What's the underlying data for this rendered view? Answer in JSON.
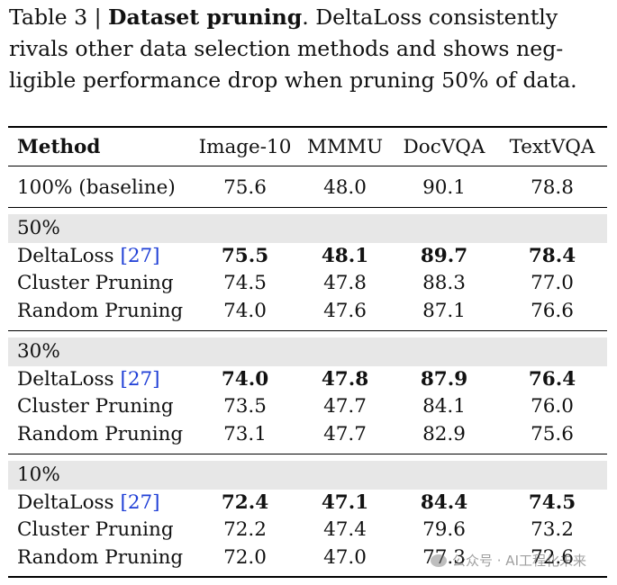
{
  "caption": {
    "label": "Table 3",
    "separator": "|",
    "title": "Dataset pruning",
    "text": "DeltaLoss consistently rivals other data selection methods and shows neg-ligible performance drop when pruning 50% of data."
  },
  "table": {
    "headers": [
      "Method",
      "Image-10",
      "MMMU",
      "DocVQA",
      "TextVQA"
    ],
    "baseline": {
      "method": "100% (baseline)",
      "values": [
        "75.6",
        "48.0",
        "90.1",
        "78.8"
      ]
    },
    "groups": [
      {
        "label": "50%",
        "rows": [
          {
            "method": "DeltaLoss",
            "ref": "[27]",
            "values": [
              "75.5",
              "48.1",
              "89.7",
              "78.4"
            ],
            "bold": true
          },
          {
            "method": "Cluster Pruning",
            "ref": "",
            "values": [
              "74.5",
              "47.8",
              "88.3",
              "77.0"
            ],
            "bold": false
          },
          {
            "method": "Random Pruning",
            "ref": "",
            "values": [
              "74.0",
              "47.6",
              "87.1",
              "76.6"
            ],
            "bold": false
          }
        ]
      },
      {
        "label": "30%",
        "rows": [
          {
            "method": "DeltaLoss",
            "ref": "[27]",
            "values": [
              "74.0",
              "47.8",
              "87.9",
              "76.4"
            ],
            "bold": true
          },
          {
            "method": "Cluster Pruning",
            "ref": "",
            "values": [
              "73.5",
              "47.7",
              "84.1",
              "76.0"
            ],
            "bold": false
          },
          {
            "method": "Random Pruning",
            "ref": "",
            "values": [
              "73.1",
              "47.7",
              "82.9",
              "75.6"
            ],
            "bold": false
          }
        ]
      },
      {
        "label": "10%",
        "rows": [
          {
            "method": "DeltaLoss",
            "ref": "[27]",
            "values": [
              "72.4",
              "47.1",
              "84.4",
              "74.5"
            ],
            "bold": true
          },
          {
            "method": "Cluster Pruning",
            "ref": "",
            "values": [
              "72.2",
              "47.4",
              "79.6",
              "73.2"
            ],
            "bold": false
          },
          {
            "method": "Random Pruning",
            "ref": "",
            "values": [
              "72.0",
              "47.0",
              "77.3",
              "72.6"
            ],
            "bold": false
          }
        ]
      }
    ]
  },
  "watermark": {
    "text": "公众号 · AI工程化未来",
    "icon": "wechat-icon"
  }
}
